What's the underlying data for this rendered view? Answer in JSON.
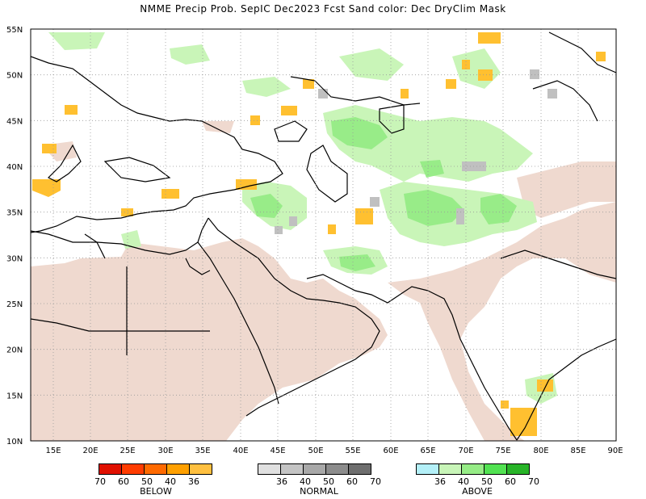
{
  "title": "NMME Precip Prob. SepIC  Dec2023 Fcst  Sand color: Dec DryClim Mask",
  "lat_labels": [
    "55N",
    "50N",
    "45N",
    "40N",
    "35N",
    "30N",
    "25N",
    "20N",
    "15N",
    "10N"
  ],
  "lon_labels": [
    "15E",
    "20E",
    "25E",
    "30E",
    "35E",
    "40E",
    "45E",
    "50E",
    "55E",
    "60E",
    "65E",
    "70E",
    "75E",
    "80E",
    "85E",
    "90E"
  ],
  "colors": {
    "sand": "#efd9cf",
    "below_36": "#ffc030",
    "below_40": "#ffa000",
    "normal_36": "#dcdcdc",
    "normal_40": "#c0c0c0",
    "above_36": "#c9f5b8",
    "above_40": "#98ec88",
    "coast": "#000000"
  },
  "legend": {
    "below": {
      "name": "BELOW",
      "colors": [
        "#e01000",
        "#ff3c00",
        "#ff6a00",
        "#ffa000",
        "#ffc040"
      ],
      "ticks": [
        "70",
        "60",
        "50",
        "40",
        "36"
      ]
    },
    "normal": {
      "name": "NORMAL",
      "colors": [
        "#e0e0e0",
        "#c4c4c4",
        "#a8a8a8",
        "#8c8c8c",
        "#6e6e6e"
      ],
      "ticks": [
        "36",
        "40",
        "50",
        "60",
        "70"
      ]
    },
    "above": {
      "name": "ABOVE",
      "colors": [
        "#b4f0f8",
        "#c8f5b8",
        "#96ec86",
        "#52e252",
        "#28b428"
      ],
      "ticks": [
        "36",
        "40",
        "50",
        "60",
        "70"
      ]
    }
  }
}
